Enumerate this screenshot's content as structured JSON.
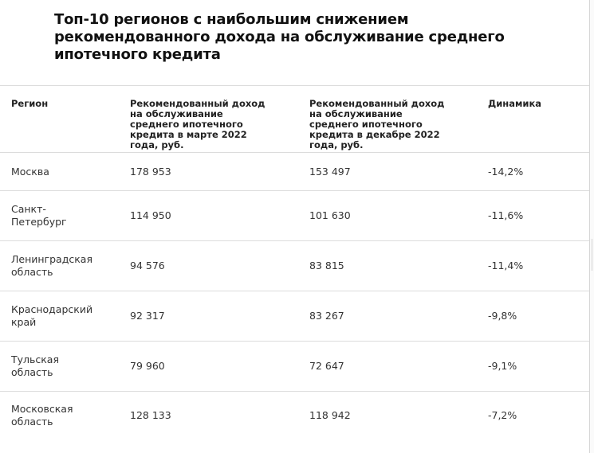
{
  "title": "Топ-10 регионов с наибольшим снижением рекомендованного дохода на обслуживание среднего ипотечного кредита",
  "table": {
    "headers": [
      "Регион",
      "Рекомендованный доход на обслуживание среднего ипотечного кредита в марте 2022 года, руб.",
      "Рекомендованный доход на обслуживание среднего ипотечного кредита в декабре 2022 года, руб.",
      "Динамика"
    ],
    "rows": [
      {
        "region": "Москва",
        "march": "178 953",
        "december": "153 497",
        "change": "-14,2%"
      },
      {
        "region": "Санкт-Петербург",
        "march": "114 950",
        "december": "101 630",
        "change": "-11,6%"
      },
      {
        "region": "Ленинградская область",
        "march": "94 576",
        "december": "83 815",
        "change": "-11,4%"
      },
      {
        "region": "Краснодарский край",
        "march": "92 317",
        "december": "83 267",
        "change": "-9,8%"
      },
      {
        "region": "Тульская область",
        "march": "79 960",
        "december": "72 647",
        "change": "-9,1%"
      },
      {
        "region": "Московская область",
        "march": "128 133",
        "december": "118 942",
        "change": "-7,2%"
      }
    ]
  }
}
